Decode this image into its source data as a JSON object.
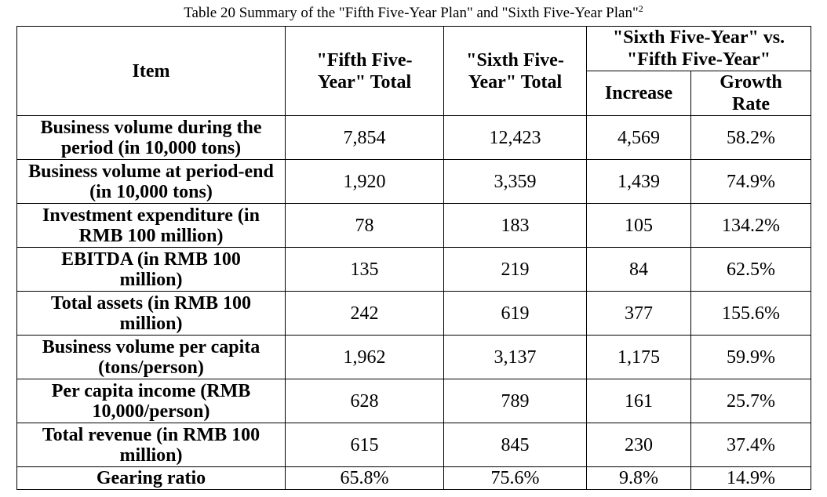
{
  "caption": {
    "text": "Table 20 Summary of the \"Fifth Five-Year Plan\" and \"Sixth Five-Year Plan\"",
    "footnote": "2"
  },
  "headers": {
    "item": "Item",
    "fifth_total": "\"Fifth Five-Year\" Total",
    "sixth_total": "\"Sixth Five-Year\" Total",
    "comparison": "\"Sixth Five-Year\" vs. \"Fifth Five-Year\"",
    "increase": "Increase",
    "growth_rate": "Growth Rate"
  },
  "rows": [
    {
      "item": "Business volume during the period (in 10,000 tons)",
      "fifth": "7,854",
      "sixth": "12,423",
      "increase": "4,569",
      "growth": "58.2%"
    },
    {
      "item": "Business volume at period-end (in 10,000 tons)",
      "fifth": "1,920",
      "sixth": "3,359",
      "increase": "1,439",
      "growth": "74.9%"
    },
    {
      "item": "Investment expenditure (in RMB 100 million)",
      "fifth": "78",
      "sixth": "183",
      "increase": "105",
      "growth": "134.2%"
    },
    {
      "item": "EBITDA (in RMB 100 million)",
      "fifth": "135",
      "sixth": "219",
      "increase": "84",
      "growth": "62.5%"
    },
    {
      "item": "Total assets (in RMB 100 million)",
      "fifth": "242",
      "sixth": "619",
      "increase": "377",
      "growth": "155.6%"
    },
    {
      "item": "Business volume per capita (tons/person)",
      "fifth": "1,962",
      "sixth": "3,137",
      "increase": "1,175",
      "growth": "59.9%"
    },
    {
      "item": "Per capita income (RMB 10,000/person)",
      "fifth": "628",
      "sixth": "789",
      "increase": "161",
      "growth": "25.7%"
    },
    {
      "item": "Total revenue (in RMB 100 million)",
      "fifth": "615",
      "sixth": "845",
      "increase": "230",
      "growth": "37.4%"
    },
    {
      "item": "Gearing ratio",
      "fifth": "65.8%",
      "sixth": "75.6%",
      "increase": "9.8%",
      "growth": "14.9%"
    }
  ]
}
